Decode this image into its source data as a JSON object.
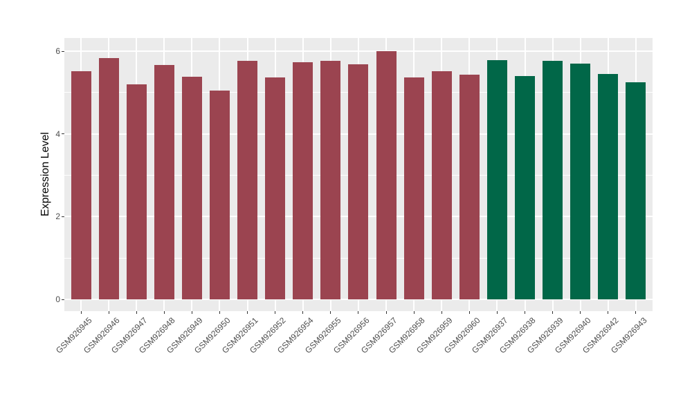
{
  "figure": {
    "background": "#ffffff",
    "panel_background": "#ebebeb",
    "grid_color": "#ffffff",
    "axis_text_color": "#4d4d4d",
    "axis_title_color": "#000000",
    "tick_color": "#333333"
  },
  "chart_data": {
    "type": "bar",
    "title": "",
    "xlabel": "",
    "ylabel": "Expression Level",
    "ylim": [
      0,
      6.32
    ],
    "yticks": [
      0,
      2,
      4,
      6
    ],
    "grid": true,
    "legend": "none",
    "x_tick_rotation_deg": 45,
    "group_colors": {
      "maroon": "#9b4450",
      "green": "#016748"
    },
    "bars": [
      {
        "label": "GSM926945",
        "value": 5.52,
        "group": "maroon"
      },
      {
        "label": "GSM926946",
        "value": 5.83,
        "group": "maroon"
      },
      {
        "label": "GSM926947",
        "value": 5.2,
        "group": "maroon"
      },
      {
        "label": "GSM926948",
        "value": 5.66,
        "group": "maroon"
      },
      {
        "label": "GSM926949",
        "value": 5.39,
        "group": "maroon"
      },
      {
        "label": "GSM926950",
        "value": 5.05,
        "group": "maroon"
      },
      {
        "label": "GSM926951",
        "value": 5.77,
        "group": "maroon"
      },
      {
        "label": "GSM926952",
        "value": 5.36,
        "group": "maroon"
      },
      {
        "label": "GSM926954",
        "value": 5.73,
        "group": "maroon"
      },
      {
        "label": "GSM926955",
        "value": 5.76,
        "group": "maroon"
      },
      {
        "label": "GSM926956",
        "value": 5.68,
        "group": "maroon"
      },
      {
        "label": "GSM926957",
        "value": 6.0,
        "group": "maroon"
      },
      {
        "label": "GSM926958",
        "value": 5.36,
        "group": "maroon"
      },
      {
        "label": "GSM926959",
        "value": 5.51,
        "group": "maroon"
      },
      {
        "label": "GSM926960",
        "value": 5.43,
        "group": "maroon"
      },
      {
        "label": "GSM926937",
        "value": 5.79,
        "group": "green"
      },
      {
        "label": "GSM926938",
        "value": 5.4,
        "group": "green"
      },
      {
        "label": "GSM926939",
        "value": 5.77,
        "group": "green"
      },
      {
        "label": "GSM926940",
        "value": 5.7,
        "group": "green"
      },
      {
        "label": "GSM926942",
        "value": 5.45,
        "group": "green"
      },
      {
        "label": "GSM926943",
        "value": 5.24,
        "group": "green"
      }
    ]
  }
}
